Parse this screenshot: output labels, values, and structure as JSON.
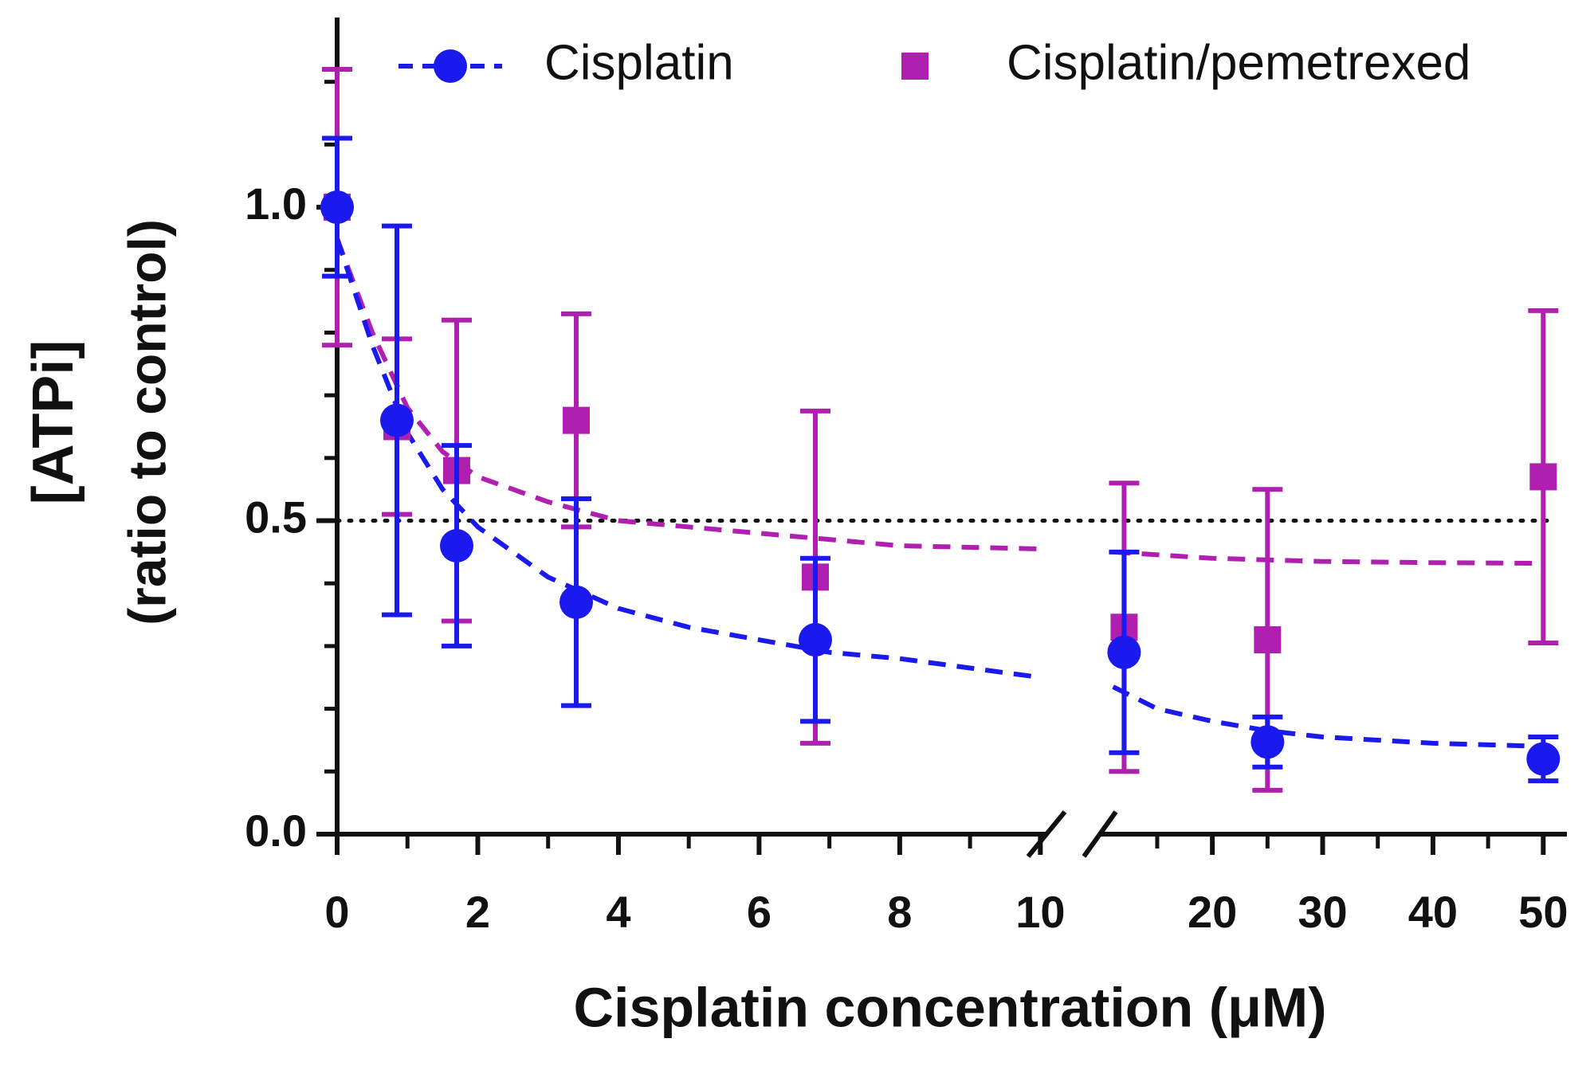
{
  "chart_data": {
    "type": "scatter",
    "xlabel": "Cisplatin concentration (μM)",
    "ylabel": [
      "[ATPi]",
      "(ratio to control)"
    ],
    "ylim": [
      0,
      1.3
    ],
    "yticks": [
      {
        "value": 0,
        "label": "0.0"
      },
      {
        "value": 0.5,
        "label": "0.5"
      },
      {
        "value": 1,
        "label": "1.0"
      }
    ],
    "yminorticks": [
      0.1,
      0.2,
      0.3,
      0.4,
      0.6,
      0.7,
      0.8,
      0.9,
      1.1,
      1.2
    ],
    "x_segments": [
      {
        "xlim": [
          0,
          10.2
        ],
        "xticks": [
          0,
          2,
          4,
          6,
          8,
          10
        ],
        "xminorticks": [
          1,
          3,
          5,
          7,
          9
        ]
      },
      {
        "xlim": [
          8.5,
          52
        ],
        "xticks": [
          20,
          30,
          40,
          50
        ],
        "xminorticks": [
          15,
          25,
          35,
          45
        ]
      }
    ],
    "reference_line": 0.5,
    "series": [
      {
        "name": "Cisplatin/pemetrexed",
        "color": "#b020b0",
        "marker": "square",
        "x": [
          0,
          0.85,
          1.7,
          3.4,
          6.8,
          12,
          25,
          50
        ],
        "values": [
          1.0,
          0.65,
          0.58,
          0.66,
          0.41,
          0.33,
          0.31,
          0.57
        ],
        "errors": [
          0.22,
          0.14,
          0.24,
          0.17,
          0.265,
          0.23,
          0.24,
          0.265
        ],
        "fit_x": [
          0,
          0.5,
          1,
          1.5,
          2,
          3,
          4,
          6,
          8,
          10,
          null,
          11,
          20,
          30,
          40,
          50
        ],
        "fit_y": [
          0.95,
          0.8,
          0.68,
          0.61,
          0.57,
          0.53,
          0.5,
          0.48,
          0.46,
          0.455,
          null,
          0.45,
          0.44,
          0.435,
          0.433,
          0.432
        ]
      },
      {
        "name": "Cisplatin",
        "color": "#1a1aee",
        "marker": "circle",
        "x": [
          0,
          0.85,
          1.7,
          3.4,
          6.8,
          12,
          25,
          50
        ],
        "values": [
          1.0,
          0.66,
          0.46,
          0.37,
          0.31,
          0.29,
          0.147,
          0.12
        ],
        "errors": [
          0.11,
          0.31,
          0.16,
          0.165,
          0.13,
          0.16,
          0.04,
          0.035
        ],
        "fit_x": [
          0,
          0.5,
          1,
          1.5,
          2,
          3,
          4,
          5,
          6,
          7,
          8,
          9,
          10,
          null,
          11,
          15,
          20,
          25,
          30,
          40,
          50
        ],
        "fit_y": [
          0.95,
          0.78,
          0.64,
          0.55,
          0.49,
          0.41,
          0.36,
          0.33,
          0.31,
          0.29,
          0.28,
          0.265,
          0.25,
          null,
          0.235,
          0.2,
          0.18,
          0.165,
          0.155,
          0.145,
          0.14
        ]
      }
    ]
  }
}
